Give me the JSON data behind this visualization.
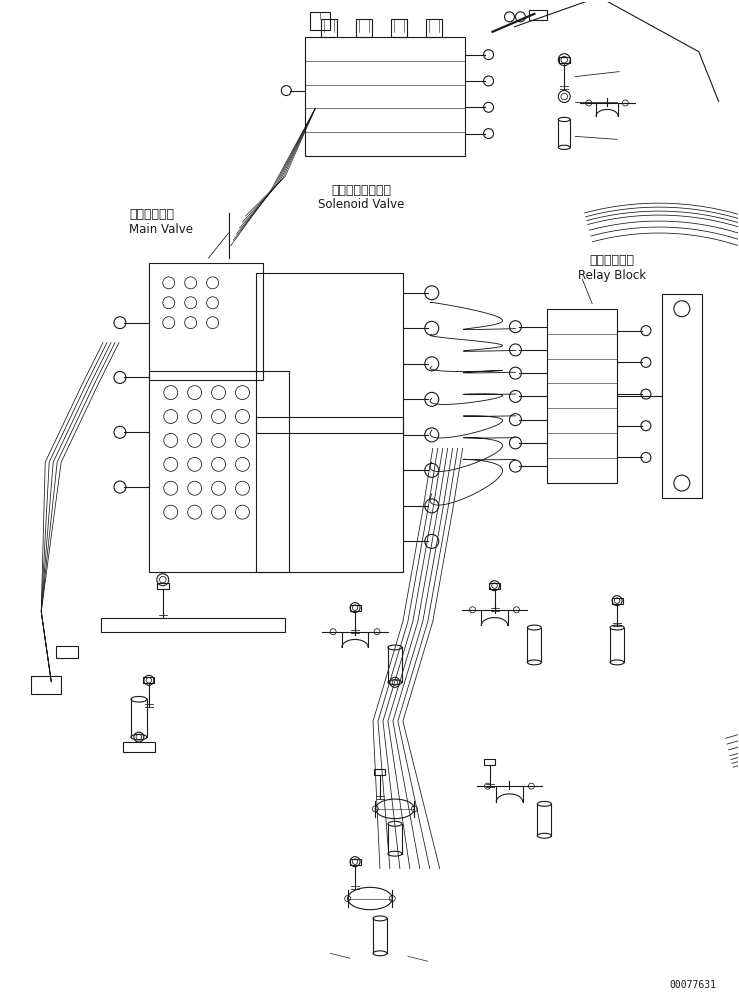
{
  "doc_number": "00077631",
  "background_color": "#ffffff",
  "line_color": "#1a1a1a",
  "labels": {
    "solenoid_jp": "ソレノイドバルブ",
    "solenoid_en": "Solenoid Valve",
    "main_valve_jp": "メインバルブ",
    "main_valve_en": "Main Valve",
    "relay_block_jp": "中継ブロック",
    "relay_block_en": "Relay Block"
  },
  "figsize": [
    7.39,
    10.05
  ],
  "dpi": 100
}
